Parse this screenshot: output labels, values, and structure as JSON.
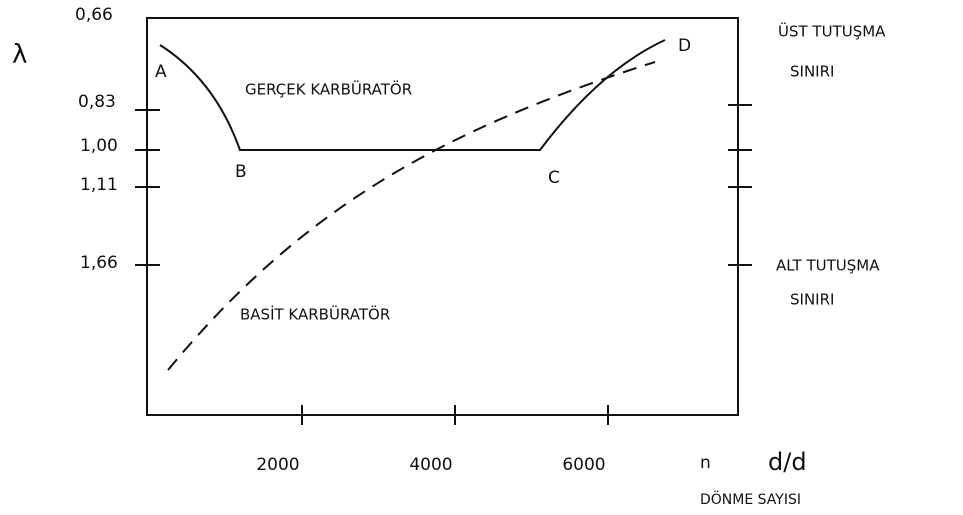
{
  "axis": {
    "y_symbol": "λ",
    "y_labels": [
      "0,66",
      "0,83",
      "1,00",
      "1,11",
      "1,66"
    ],
    "x_labels": [
      "2000",
      "4000",
      "6000"
    ],
    "x_symbol": "n",
    "x_unit": "d/d",
    "x_title": "DÖNME SAYISI"
  },
  "points": [
    "A",
    "B",
    "C",
    "D"
  ],
  "curves": {
    "real": "GERÇEK KARBÜRATÖR",
    "simple": "BASİT KARBÜRATÖR"
  },
  "limits": {
    "upper": [
      "ÜST TUTUŞMA",
      "SINIRI"
    ],
    "lower": [
      "ALT TUTUŞMA",
      "SINIRI"
    ]
  }
}
